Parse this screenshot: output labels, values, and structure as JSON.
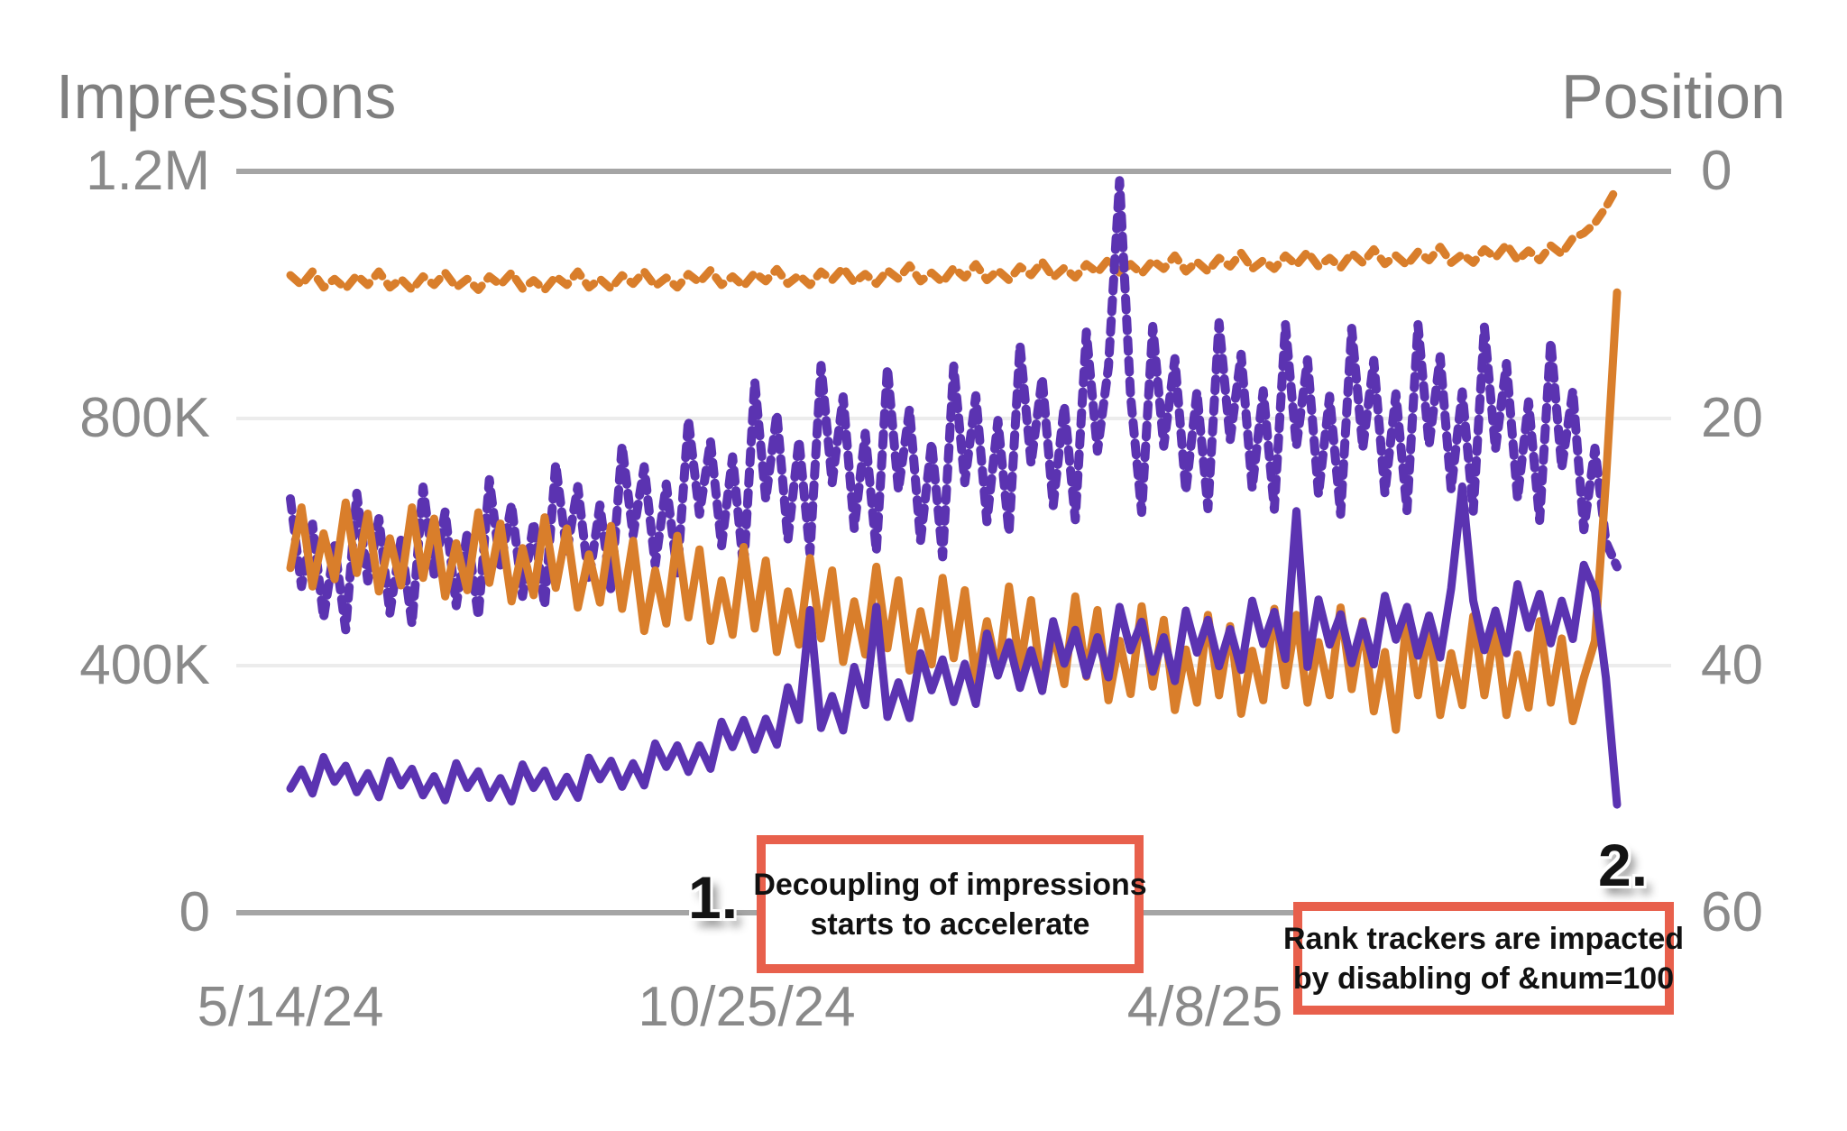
{
  "chart_data": {
    "type": "line",
    "title": "",
    "legend": "none",
    "grid": "horizontal",
    "left_axis": {
      "label": "Impressions",
      "min": 0,
      "max": 1200000,
      "ticks": [
        "1.2M",
        "800K",
        "400K",
        "0"
      ]
    },
    "right_axis": {
      "label": "Position",
      "min": 0,
      "max": 60,
      "inverted": true,
      "ticks": [
        "0",
        "20",
        "40",
        "60"
      ]
    },
    "x_axis": {
      "tick_labels": [
        "5/14/24",
        "10/25/24",
        "4/8/25"
      ],
      "range_days": 480,
      "sample_interval_days": 4
    },
    "series": [
      {
        "name": "impressions-dashed",
        "axis": "impressions",
        "style": "dashed",
        "color": "#5b33b1",
        "unit": "thousand impressions",
        "values": [
          670,
          528,
          629,
          477,
          594,
          458,
          679,
          537,
          638,
          485,
          603,
          467,
          689,
          548,
          649,
          497,
          615,
          479,
          701,
          560,
          661,
          512,
          632,
          497,
          726,
          584,
          690,
          536,
          660,
          521,
          756,
          611,
          722,
          563,
          694,
          550,
          798,
          645,
          763,
          594,
          738,
          555,
          860,
          669,
          808,
          603,
          765,
          582,
          886,
          696,
          835,
          622,
          776,
          585,
          882,
          684,
          815,
          602,
          761,
          576,
          885,
          696,
          837,
          633,
          797,
          615,
          919,
          727,
          866,
          659,
          821,
          636,
          940,
          747,
          884,
          1185,
          837,
          648,
          949,
          755,
          897,
          682,
          843,
          654,
          955,
          765,
          904,
          687,
          845,
          653,
          952,
          755,
          895,
          677,
          836,
          645,
          946,
          752,
          894,
          679,
          840,
          651,
          952,
          757,
          900,
          685,
          843,
          650,
          948,
          750,
          889,
          670,
          827,
          635,
          925,
          720,
          845,
          620,
          752,
          600,
          560
        ]
      },
      {
        "name": "position-dashed",
        "axis": "position",
        "style": "dashed",
        "color": "#d97e2b",
        "unit": "avg position",
        "values": [
          8.4,
          9.2,
          8.1,
          9.4,
          8.7,
          9.5,
          8.4,
          9.2,
          8.1,
          9.4,
          8.7,
          9.6,
          8.5,
          9.2,
          8.2,
          9.4,
          8.7,
          9.6,
          8.5,
          9.2,
          8.2,
          9.5,
          8.8,
          9.6,
          8.5,
          9.2,
          8.1,
          9.4,
          8.7,
          9.5,
          8.4,
          9.1,
          8.1,
          9.3,
          8.6,
          9.4,
          8.3,
          9.0,
          8.0,
          9.2,
          8.5,
          9.3,
          8.2,
          8.9,
          7.9,
          9.1,
          8.4,
          9.2,
          8.1,
          8.8,
          7.8,
          9.0,
          8.3,
          9.1,
          8.0,
          8.7,
          7.6,
          8.9,
          8.2,
          9.0,
          7.8,
          8.6,
          7.5,
          8.8,
          8.0,
          8.8,
          7.7,
          8.4,
          7.3,
          8.6,
          7.8,
          8.6,
          7.5,
          8.2,
          7.1,
          8.2,
          7.5,
          8.3,
          7.2,
          7.9,
          6.8,
          8.1,
          7.3,
          8.1,
          7.0,
          7.7,
          6.6,
          7.9,
          7.2,
          7.9,
          6.8,
          7.6,
          6.5,
          7.7,
          7.0,
          7.8,
          6.6,
          7.4,
          6.3,
          7.5,
          6.8,
          7.6,
          6.5,
          7.2,
          6.1,
          7.4,
          6.7,
          7.4,
          6.3,
          7.0,
          5.9,
          7.2,
          6.4,
          7.2,
          6.0,
          6.7,
          5.4,
          5.0,
          4.2,
          2.9,
          1.3
        ]
      },
      {
        "name": "position-solid",
        "axis": "position",
        "style": "solid",
        "color": "#d97e2b",
        "unit": "avg position",
        "values": [
          32.1,
          27.2,
          33.6,
          29.3,
          33.0,
          26.8,
          32.5,
          27.7,
          34.0,
          29.7,
          33.5,
          27.2,
          32.9,
          28.1,
          34.4,
          30.1,
          33.9,
          27.6,
          33.3,
          28.5,
          34.8,
          30.5,
          34.3,
          28.0,
          33.7,
          28.9,
          35.3,
          31.0,
          34.9,
          28.7,
          35.4,
          29.9,
          37.2,
          32.3,
          36.6,
          29.5,
          36.1,
          30.6,
          38.0,
          33.1,
          37.5,
          30.4,
          37.0,
          31.5,
          38.9,
          34.0,
          38.3,
          31.3,
          37.8,
          32.3,
          39.7,
          34.8,
          39.1,
          32.0,
          38.6,
          33.1,
          40.4,
          35.6,
          39.9,
          32.9,
          39.4,
          33.9,
          41.2,
          36.4,
          40.7,
          33.6,
          40.2,
          34.7,
          42.0,
          37.1,
          41.5,
          34.4,
          40.9,
          35.5,
          42.8,
          38.0,
          42.3,
          35.2,
          41.7,
          36.3,
          43.6,
          38.7,
          43.0,
          35.9,
          42.4,
          36.8,
          43.9,
          38.8,
          42.8,
          35.4,
          41.6,
          35.9,
          43.0,
          38.1,
          42.4,
          35.3,
          41.9,
          36.4,
          43.7,
          38.9,
          45.2,
          36.0,
          42.4,
          36.8,
          44.0,
          39.0,
          43.2,
          36.0,
          42.4,
          36.8,
          44.0,
          39.1,
          43.4,
          36.4,
          43.0,
          37.8,
          44.5,
          41.0,
          38.0,
          25.0,
          9.8
        ]
      },
      {
        "name": "impressions-solid",
        "axis": "impressions",
        "style": "solid",
        "color": "#5b33b1",
        "unit": "thousand impressions",
        "values": [
          201,
          232,
          193,
          252,
          212,
          238,
          195,
          226,
          187,
          246,
          206,
          233,
          190,
          221,
          182,
          242,
          202,
          229,
          186,
          218,
          180,
          240,
          202,
          230,
          188,
          220,
          186,
          251,
          216,
          246,
          204,
          242,
          206,
          274,
          236,
          271,
          228,
          271,
          233,
          309,
          268,
          312,
          264,
          314,
          272,
          365,
          312,
          490,
          299,
          351,
          295,
          398,
          336,
          495,
          317,
          373,
          315,
          420,
          360,
          410,
          341,
          403,
          338,
          452,
          384,
          438,
          364,
          425,
          359,
          472,
          403,
          458,
          384,
          446,
          381,
          495,
          425,
          471,
          390,
          446,
          375,
          489,
          421,
          474,
          399,
          459,
          393,
          505,
          435,
          487,
          411,
          650,
          398,
          507,
          434,
          483,
          404,
          470,
          402,
          513,
          442,
          495,
          416,
          481,
          413,
          525,
          690,
          505,
          425,
          489,
          420,
          532,
          461,
          516,
          436,
          505,
          443,
          563,
          520,
          380,
          175
        ]
      }
    ],
    "annotations": [
      {
        "marker": "1.",
        "line1": "Decoupling of impressions",
        "line2": "starts to accelerate"
      },
      {
        "marker": "2.",
        "line1": "Rank trackers are impacted",
        "line2": "by disabling of &num=100"
      }
    ],
    "colors": {
      "impressions": "#5b33b1",
      "position": "#d97e2b",
      "callout_border": "#e8604c",
      "axis_strong": "#a5a5a5",
      "axis_light": "#ececec",
      "label_gray": "#8a8a8a"
    }
  }
}
